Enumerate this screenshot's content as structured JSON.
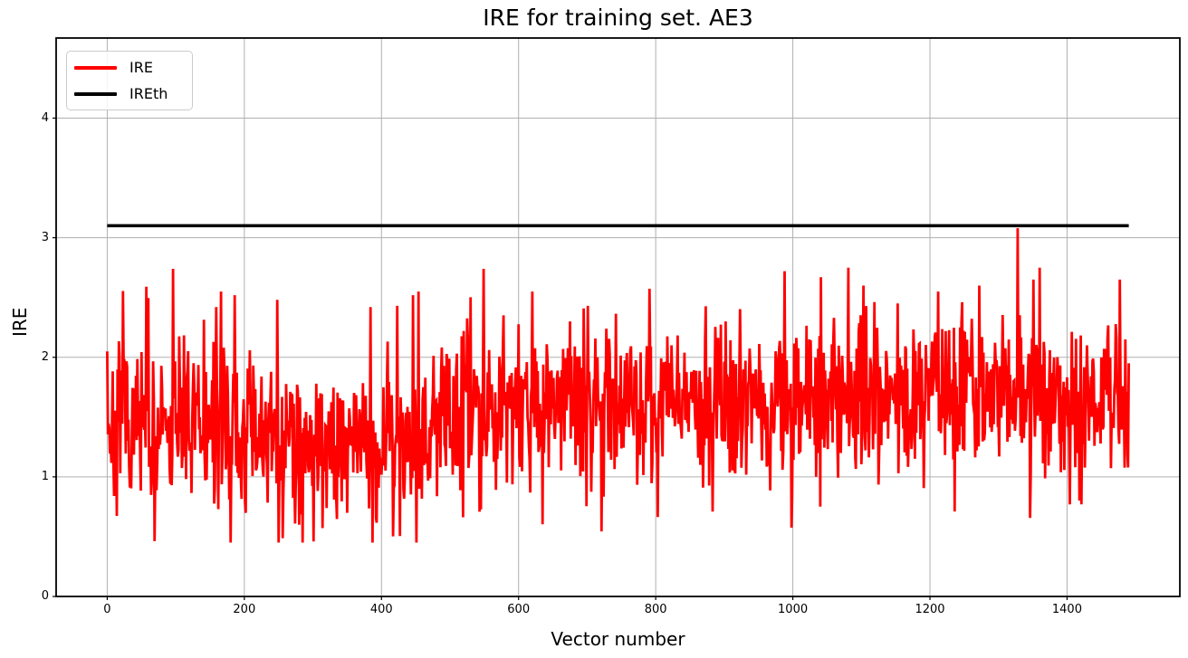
{
  "legend": {
    "items": [
      {
        "label": "IRE",
        "color": "#ff0000"
      },
      {
        "label": "IREth",
        "color": "#000000"
      }
    ]
  },
  "colors": {
    "background": "#ffffff",
    "grid": "#b0b0b0",
    "spine": "#000000",
    "text": "#000000",
    "ire_line": "#ff0000",
    "ireth_line": "#000000"
  },
  "chart_data": {
    "type": "line",
    "title": "IRE for training set. AE3",
    "xlabel": "Vector number",
    "ylabel": "IRE",
    "xlim": [
      -74.5,
      1564.5
    ],
    "ylim": [
      0,
      4.67
    ],
    "x_ticks": [
      0,
      200,
      400,
      600,
      800,
      1000,
      1200,
      1400
    ],
    "y_ticks": [
      0,
      1,
      2,
      3,
      4
    ],
    "grid": true,
    "legend_position": "upper left",
    "series": [
      {
        "name": "IRE",
        "color": "#ff0000",
        "style": "noisy-line",
        "line_width": 2.8,
        "n_points": 1491,
        "generator": {
          "seed": 7,
          "noise_std": 0.3,
          "spike_prob": 0.04,
          "spike_amp": [
            0.25,
            0.8
          ],
          "dip_prob": 0.07,
          "dip_amp": [
            0.2,
            0.7
          ],
          "clamp": [
            0.45,
            2.75
          ],
          "segments": [
            {
              "from": 0,
              "to": 180,
              "mean": 1.42
            },
            {
              "from": 180,
              "to": 480,
              "mean": 1.32
            },
            {
              "from": 480,
              "to": 530,
              "mean": 1.55
            },
            {
              "from": 530,
              "to": 1000,
              "mean": 1.62
            },
            {
              "from": 1000,
              "to": 1491,
              "mean": 1.68
            }
          ]
        },
        "anchor_points": [
          [
            0,
            2.05
          ],
          [
            57,
            2.59
          ],
          [
            96,
            2.74
          ],
          [
            159,
            2.42
          ],
          [
            166,
            2.55
          ],
          [
            186,
            2.52
          ],
          [
            248,
            2.48
          ],
          [
            301,
            0.46
          ],
          [
            384,
            2.42
          ],
          [
            423,
            2.43
          ],
          [
            446,
            2.52
          ],
          [
            454,
            2.55
          ],
          [
            549,
            2.74
          ],
          [
            620,
            2.55
          ],
          [
            675,
            2.3
          ],
          [
            701,
            2.43
          ],
          [
            823,
            2.1
          ],
          [
            902,
            2.3
          ],
          [
            988,
            2.72
          ],
          [
            1041,
            2.67
          ],
          [
            1103,
            2.6
          ],
          [
            1153,
            2.45
          ],
          [
            1212,
            2.55
          ],
          [
            1272,
            2.6
          ],
          [
            1328,
            3.08
          ],
          [
            1351,
            2.65
          ],
          [
            1404,
            0.77
          ],
          [
            1477,
            2.65
          ],
          [
            1490,
            1.95
          ]
        ]
      },
      {
        "name": "IREth",
        "color": "#000000",
        "style": "constant",
        "line_width": 3.5,
        "value": 3.1,
        "x_range": [
          0,
          1490
        ]
      }
    ]
  }
}
